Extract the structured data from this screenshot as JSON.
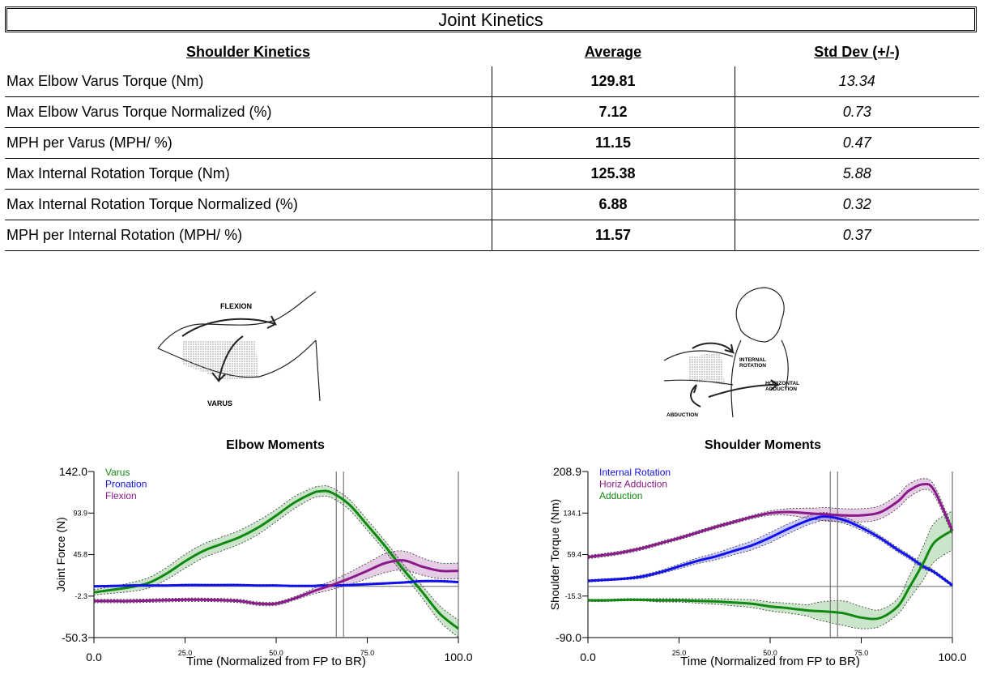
{
  "header": {
    "title": "Joint Kinetics"
  },
  "table": {
    "columns": [
      "Shoulder Kinetics",
      "Average",
      "Std Dev (+/-)"
    ],
    "rows": [
      {
        "name": "Max Elbow Varus Torque (Nm)",
        "avg": "129.81",
        "sd": "13.34"
      },
      {
        "name": "Max Elbow Varus Torque Normalized (%)",
        "avg": "7.12",
        "sd": "0.73"
      },
      {
        "name": "MPH per Varus (MPH/ %)",
        "avg": "11.15",
        "sd": "0.47"
      },
      {
        "name": "Max Internal Rotation Torque (Nm)",
        "avg": "125.38",
        "sd": "5.88"
      },
      {
        "name": "Max Internal Rotation Torque Normalized (%)",
        "avg": "6.88",
        "sd": "0.32"
      },
      {
        "name": "MPH per Internal Rotation (MPH/ %)",
        "avg": "11.57",
        "sd": "0.37"
      }
    ]
  },
  "diagrams": {
    "elbow": {
      "labels": [
        "FLEXION",
        "VARUS"
      ]
    },
    "shoulder": {
      "labels": [
        "INTERNAL",
        "ROTATION",
        "HORIZONTAL",
        "ADDUCTION",
        "ABDUCTION"
      ]
    }
  },
  "chart_data": [
    {
      "type": "line",
      "title": "Elbow Moments",
      "xlabel": "Time (Normalized from FP to BR)",
      "ylabel": "Joint Force (N)",
      "xlim": [
        0,
        100
      ],
      "ylim": [
        -50.3,
        142.0
      ],
      "x_ticks": [
        "0.0",
        "25.0",
        "50.0",
        "75.0",
        "100.0"
      ],
      "y_ticks": [
        {
          "v": 142.0,
          "label": "142.0"
        },
        {
          "v": 93.9,
          "label": "93.9"
        },
        {
          "v": 45.8,
          "label": "45.8"
        },
        {
          "v": -2.3,
          "label": "-2.3"
        },
        {
          "v": -50.3,
          "label": "-50.3"
        }
      ],
      "zero_line": 9,
      "vlines": [
        66.5,
        68.5
      ],
      "x": [
        0,
        5,
        10,
        15,
        20,
        25,
        30,
        35,
        40,
        45,
        50,
        55,
        60,
        62,
        65,
        70,
        75,
        80,
        85,
        90,
        95,
        100
      ],
      "series": [
        {
          "name": "Varus",
          "color": "#118811",
          "values": [
            2,
            5,
            8,
            13,
            24,
            38,
            50,
            58,
            66,
            77,
            91,
            106,
            117,
            119,
            118,
            104,
            80,
            55,
            28,
            3,
            -23,
            -40
          ],
          "band": [
            3,
            4,
            5,
            6,
            7,
            8,
            8,
            8,
            8,
            8,
            7,
            7,
            6,
            6,
            6,
            6,
            6,
            6,
            6,
            7,
            9,
            10
          ]
        },
        {
          "name": "Pronation",
          "color": "#1111ee",
          "values": [
            9,
            9.5,
            10,
            10,
            10,
            10.5,
            10.5,
            10.5,
            10.5,
            10,
            10,
            9.5,
            9.5,
            10,
            10,
            10.5,
            11.5,
            12.5,
            13.5,
            15,
            15,
            14
          ],
          "band": [
            1,
            1,
            1,
            1,
            1,
            1,
            1,
            1,
            1,
            1,
            1,
            1,
            1,
            1,
            1,
            1,
            1,
            1,
            1,
            1,
            1,
            1
          ]
        },
        {
          "name": "Flexion",
          "color": "#8a1a8a",
          "values": [
            -8,
            -8,
            -8,
            -7.5,
            -7,
            -6.5,
            -6.5,
            -7,
            -8,
            -11,
            -11,
            -5,
            3,
            6,
            10,
            18,
            27,
            36,
            39,
            32,
            27,
            27
          ],
          "band": [
            2,
            2,
            2,
            2,
            2,
            2,
            2,
            2,
            2,
            2,
            2,
            2,
            3,
            4,
            5,
            7,
            9,
            11,
            11,
            10,
            9,
            9
          ]
        }
      ]
    },
    {
      "type": "line",
      "title": "Shoulder Moments",
      "xlabel": "Time (Normalized from FP to BR)",
      "ylabel": "Shoulder Torque (Nm)",
      "xlim": [
        0,
        100
      ],
      "ylim": [
        -90.0,
        208.9
      ],
      "x_ticks": [
        "0.0",
        "25.0",
        "50.0",
        "75.0",
        "100.0"
      ],
      "y_ticks": [
        {
          "v": 208.9,
          "label": "208.9"
        },
        {
          "v": 134.1,
          "label": "134.1"
        },
        {
          "v": 59.4,
          "label": "59.4"
        },
        {
          "v": -15.3,
          "label": "-15.3"
        },
        {
          "v": -90.0,
          "label": "-90.0"
        }
      ],
      "zero_line": 2,
      "vlines": [
        66.5,
        68.5
      ],
      "x": [
        0,
        5,
        10,
        15,
        20,
        25,
        30,
        35,
        40,
        45,
        50,
        55,
        60,
        62,
        65,
        70,
        75,
        80,
        85,
        88,
        92,
        95,
        100
      ],
      "series": [
        {
          "name": "Internal Rotation",
          "color": "#1111ee",
          "values": [
            12,
            14,
            16,
            20,
            28,
            38,
            48,
            56,
            66,
            76,
            90,
            106,
            120,
            124,
            128,
            122,
            108,
            90,
            68,
            56,
            38,
            28,
            4
          ],
          "band": [
            2,
            2,
            2,
            3,
            3,
            4,
            5,
            6,
            7,
            8,
            9,
            9,
            8,
            8,
            7,
            6,
            5,
            4,
            4,
            4,
            4,
            3,
            3
          ]
        },
        {
          "name": "Horiz Adduction",
          "color": "#8a1a8a",
          "values": [
            55,
            59,
            64,
            71,
            80,
            89,
            99,
            109,
            118,
            127,
            134,
            136,
            134,
            133,
            132,
            130,
            130,
            135,
            155,
            174,
            186,
            175,
            102
          ],
          "band": [
            3,
            3,
            3,
            3,
            3,
            3,
            3,
            3,
            3,
            3,
            4,
            6,
            9,
            10,
            12,
            12,
            12,
            12,
            12,
            12,
            10,
            9,
            7
          ]
        },
        {
          "name": "Adduction",
          "color": "#118811",
          "values": [
            -23,
            -23,
            -22,
            -22,
            -23,
            -23,
            -24,
            -25,
            -27,
            -29,
            -34,
            -37,
            -41,
            -42,
            -43,
            -46,
            -54,
            -55,
            -34,
            -2,
            44,
            81,
            103
          ],
          "band": [
            2,
            2,
            2,
            2,
            3,
            3,
            4,
            5,
            6,
            7,
            8,
            9,
            10,
            14,
            18,
            22,
            20,
            15,
            14,
            20,
            30,
            35,
            35
          ]
        }
      ]
    }
  ]
}
